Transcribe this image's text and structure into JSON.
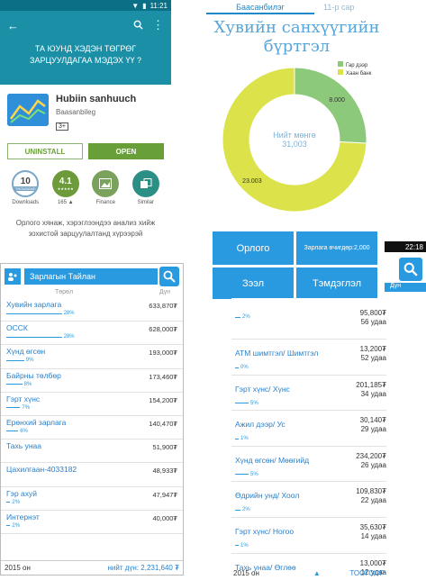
{
  "store": {
    "time": "11:21",
    "banner": "ТА ЮУНД ХЭДЭН ТӨГРӨГ ЗАРЦУУЛДАГАА МЭДЭХ ҮҮ ?",
    "app_name": "Hubiin sanhuuch",
    "developer": "Baasanbileg",
    "age_rating": "3+",
    "uninstall_label": "UNINSTALL",
    "open_label": "OPEN",
    "stats": [
      {
        "big": "10",
        "sub": "THOUSAND",
        "label": "Downloads"
      },
      {
        "big": "4.1",
        "sub": "★★★★★",
        "label": "165 ▲"
      },
      {
        "big": "",
        "sub": "",
        "label": "Finance"
      },
      {
        "big": "",
        "sub": "",
        "label": "Similar"
      }
    ],
    "description": "Орлого хянаж, хэрэглээндээ анализ хийж зохистой зарцуулалтанд хүрээрэй"
  },
  "chart_panel": {
    "tab_active": "Баасанбилэг",
    "tab_other": "11-р сар",
    "title_line1": "Хувийн санхүүгийн",
    "title_line2": "бүртгэл"
  },
  "chart_data": {
    "type": "pie",
    "title": "Хувийн санхүүгийн бүртгэл",
    "center_label": "Нийт мөнгө",
    "center_value": "31,003",
    "categories": [
      "Гар дээр",
      "Хаан банк"
    ],
    "values": [
      8000,
      23003
    ],
    "value_labels": [
      "8.000",
      "23.003"
    ],
    "colors": [
      "#8dc97b",
      "#dbe24a"
    ],
    "legend_position": "top-right"
  },
  "buttons": {
    "income": "Орлого",
    "expense": "Зарлага өчигдөр:2,000",
    "loan": "Зээл",
    "notes": "Тэмдэглэл"
  },
  "report": {
    "title": "Зарлагын Тайлан",
    "col_type": "Төрөл",
    "col_amount": "Дүн",
    "rows": [
      {
        "name": "Хувийн зарлага",
        "amount": "633,870₮",
        "pct": "28%",
        "share": 28
      },
      {
        "name": "ОССК",
        "amount": "628,000₮",
        "pct": "28%",
        "share": 28
      },
      {
        "name": "Хүнд өгсөн",
        "amount": "193,000₮",
        "pct": "9%",
        "share": 9
      },
      {
        "name": "Байрны төлбөр",
        "amount": "173,460₮",
        "pct": "8%",
        "share": 8
      },
      {
        "name": "Гэрт хүнс",
        "amount": "154,200₮",
        "pct": "7%",
        "share": 7
      },
      {
        "name": "Ерөнхий зарлага",
        "amount": "140,470₮",
        "pct": "6%",
        "share": 6
      },
      {
        "name": "Тахь унаа",
        "amount": "51,900₮",
        "pct": "",
        "share": 0
      },
      {
        "name": "Цахилгаан-4033182",
        "amount": "48,933₮",
        "pct": "",
        "share": 0
      },
      {
        "name": "Гэр ахуй",
        "amount": "47,947₮",
        "pct": "2%",
        "share": 2
      },
      {
        "name": "Интернэт",
        "amount": "40,000₮",
        "pct": "2%",
        "share": 2
      }
    ],
    "year": "2015 он",
    "total": "нийт дүн: 2,231,640 ₮"
  },
  "right_list": {
    "rows": [
      {
        "name": "",
        "amount": "95,800₮",
        "count": "56 удаа",
        "pct": "2%",
        "share": 2
      },
      {
        "name": "АТМ шимтгэл/ Шимтгэл",
        "amount": "13,200₮",
        "count": "52 удаа",
        "pct": "0%",
        "share": 0
      },
      {
        "name": "Гэрт хүнс/ Хүнс",
        "amount": "201,185₮",
        "count": "34 удаа",
        "pct": "5%",
        "share": 5
      },
      {
        "name": "Ажил дээр/ Ус",
        "amount": "30,140₮",
        "count": "29 удаа",
        "pct": "1%",
        "share": 1
      },
      {
        "name": "Хүнд өгсөн/ Мөөгийд",
        "amount": "234,200₮",
        "count": "26 удаа",
        "pct": "5%",
        "share": 5
      },
      {
        "name": "Өдрийн унд/ Хоол",
        "amount": "109,830₮",
        "count": "22 удаа",
        "pct": "2%",
        "share": 2
      },
      {
        "name": "Гэрт хүнс/ Ногоо",
        "amount": "35,630₮",
        "count": "14 удаа",
        "pct": "1%",
        "share": 1
      },
      {
        "name": "Тахь унаа/ Өглөө",
        "amount": "13,000₮",
        "count": "12 удаа",
        "pct": "",
        "share": 0
      }
    ],
    "year": "2015 он",
    "total": "ТООГООР"
  },
  "mini_phone": {
    "time": "22:18",
    "col_amount": "Дүн"
  }
}
